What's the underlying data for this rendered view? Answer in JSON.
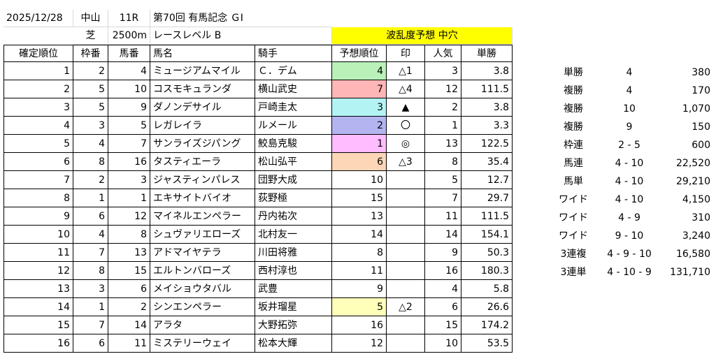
{
  "header": {
    "date": "2025/12/28",
    "venue": "中山",
    "race_no": "11R",
    "race_name": "第70回 有馬記念 ＧⅠ",
    "surface": "芝",
    "distance": "2500m",
    "level": "レースレベル B",
    "forecast": "波乱度予想 中穴"
  },
  "columns": [
    "確定順位",
    "枠番",
    "馬番",
    "馬名",
    "騎手",
    "予想順位",
    "印",
    "人気",
    "単勝"
  ],
  "rows": [
    {
      "rank": "1",
      "waku": "2",
      "uma": "4",
      "name": "ミュージアムマイル",
      "jockey": "Ｃ．デム",
      "pred": "4",
      "mark": "△1",
      "pop": "3",
      "odds": "3.8",
      "color": "#b9f1b9"
    },
    {
      "rank": "2",
      "waku": "5",
      "uma": "10",
      "name": "コスモキュランダ",
      "jockey": "横山武史",
      "pred": "7",
      "mark": "△4",
      "pop": "12",
      "odds": "111.5",
      "color": "#ffb6b6"
    },
    {
      "rank": "3",
      "waku": "5",
      "uma": "9",
      "name": "ダノンデサイル",
      "jockey": "戸崎圭太",
      "pred": "3",
      "mark": "▲",
      "pop": "2",
      "odds": "3.8",
      "color": "#b3f3f3"
    },
    {
      "rank": "4",
      "waku": "3",
      "uma": "5",
      "name": "レガレイラ",
      "jockey": "ルメール",
      "pred": "2",
      "mark": "〇",
      "pop": "1",
      "odds": "3.3",
      "color": "#b4b4f0"
    },
    {
      "rank": "5",
      "waku": "4",
      "uma": "7",
      "name": "サンライズジパング",
      "jockey": "鮫島克駿",
      "pred": "1",
      "mark": "◎",
      "pop": "13",
      "odds": "122.5",
      "color": "#ffbcff"
    },
    {
      "rank": "6",
      "waku": "8",
      "uma": "16",
      "name": "タスティエーラ",
      "jockey": "松山弘平",
      "pred": "6",
      "mark": "△3",
      "pop": "8",
      "odds": "35.4",
      "color": "#fcd6b6"
    },
    {
      "rank": "7",
      "waku": "2",
      "uma": "3",
      "name": "ジャスティンパレス",
      "jockey": "団野大成",
      "pred": "10",
      "mark": "",
      "pop": "5",
      "odds": "12.7",
      "color": ""
    },
    {
      "rank": "8",
      "waku": "1",
      "uma": "1",
      "name": "エキサイトバイオ",
      "jockey": "荻野極",
      "pred": "15",
      "mark": "",
      "pop": "7",
      "odds": "29.7",
      "color": ""
    },
    {
      "rank": "9",
      "waku": "6",
      "uma": "12",
      "name": "マイネルエンペラー",
      "jockey": "丹内祐次",
      "pred": "13",
      "mark": "",
      "pop": "11",
      "odds": "111.5",
      "color": ""
    },
    {
      "rank": "10",
      "waku": "4",
      "uma": "8",
      "name": "シュヴァリエローズ",
      "jockey": "北村友一",
      "pred": "14",
      "mark": "",
      "pop": "14",
      "odds": "154.1",
      "color": ""
    },
    {
      "rank": "11",
      "waku": "7",
      "uma": "13",
      "name": "アドマイヤテラ",
      "jockey": "川田将雅",
      "pred": "8",
      "mark": "",
      "pop": "9",
      "odds": "50.3",
      "color": ""
    },
    {
      "rank": "12",
      "waku": "8",
      "uma": "15",
      "name": "エルトンバローズ",
      "jockey": "西村淳也",
      "pred": "11",
      "mark": "",
      "pop": "16",
      "odds": "180.3",
      "color": ""
    },
    {
      "rank": "13",
      "waku": "3",
      "uma": "6",
      "name": "メイショウタバル",
      "jockey": "武豊",
      "pred": "9",
      "mark": "",
      "pop": "4",
      "odds": "5.8",
      "color": ""
    },
    {
      "rank": "14",
      "waku": "1",
      "uma": "2",
      "name": "シンエンペラー",
      "jockey": "坂井瑠星",
      "pred": "5",
      "mark": "△2",
      "pop": "6",
      "odds": "26.6",
      "color": "#ffffb9"
    },
    {
      "rank": "15",
      "waku": "7",
      "uma": "14",
      "name": "アラタ",
      "jockey": "大野拓弥",
      "pred": "16",
      "mark": "",
      "pop": "15",
      "odds": "174.2",
      "color": ""
    },
    {
      "rank": "16",
      "waku": "6",
      "uma": "11",
      "name": "ミステリーウェイ",
      "jockey": "松本大輝",
      "pred": "12",
      "mark": "",
      "pop": "10",
      "odds": "53.5",
      "color": ""
    }
  ],
  "payouts": [
    {
      "type": "単勝",
      "combo": "4",
      "amount": "380"
    },
    {
      "type": "複勝",
      "combo": "4",
      "amount": "170"
    },
    {
      "type": "複勝",
      "combo": "10",
      "amount": "1,070"
    },
    {
      "type": "複勝",
      "combo": "9",
      "amount": "150"
    },
    {
      "type": "枠連",
      "combo": "2 - 5",
      "amount": "600"
    },
    {
      "type": "馬連",
      "combo": "4 - 10",
      "amount": "22,520"
    },
    {
      "type": "馬単",
      "combo": "4 - 10",
      "amount": "29,210"
    },
    {
      "type": "ワイド",
      "combo": "4 - 10",
      "amount": "4,150"
    },
    {
      "type": "ワイド",
      "combo": "4 - 9",
      "amount": "310"
    },
    {
      "type": "ワイド",
      "combo": "9 - 10",
      "amount": "3,240"
    },
    {
      "type": "3連複",
      "combo": "4 - 9 - 10",
      "amount": "16,580"
    },
    {
      "type": "3連単",
      "combo": "4 - 10 - 9",
      "amount": "131,710"
    }
  ]
}
